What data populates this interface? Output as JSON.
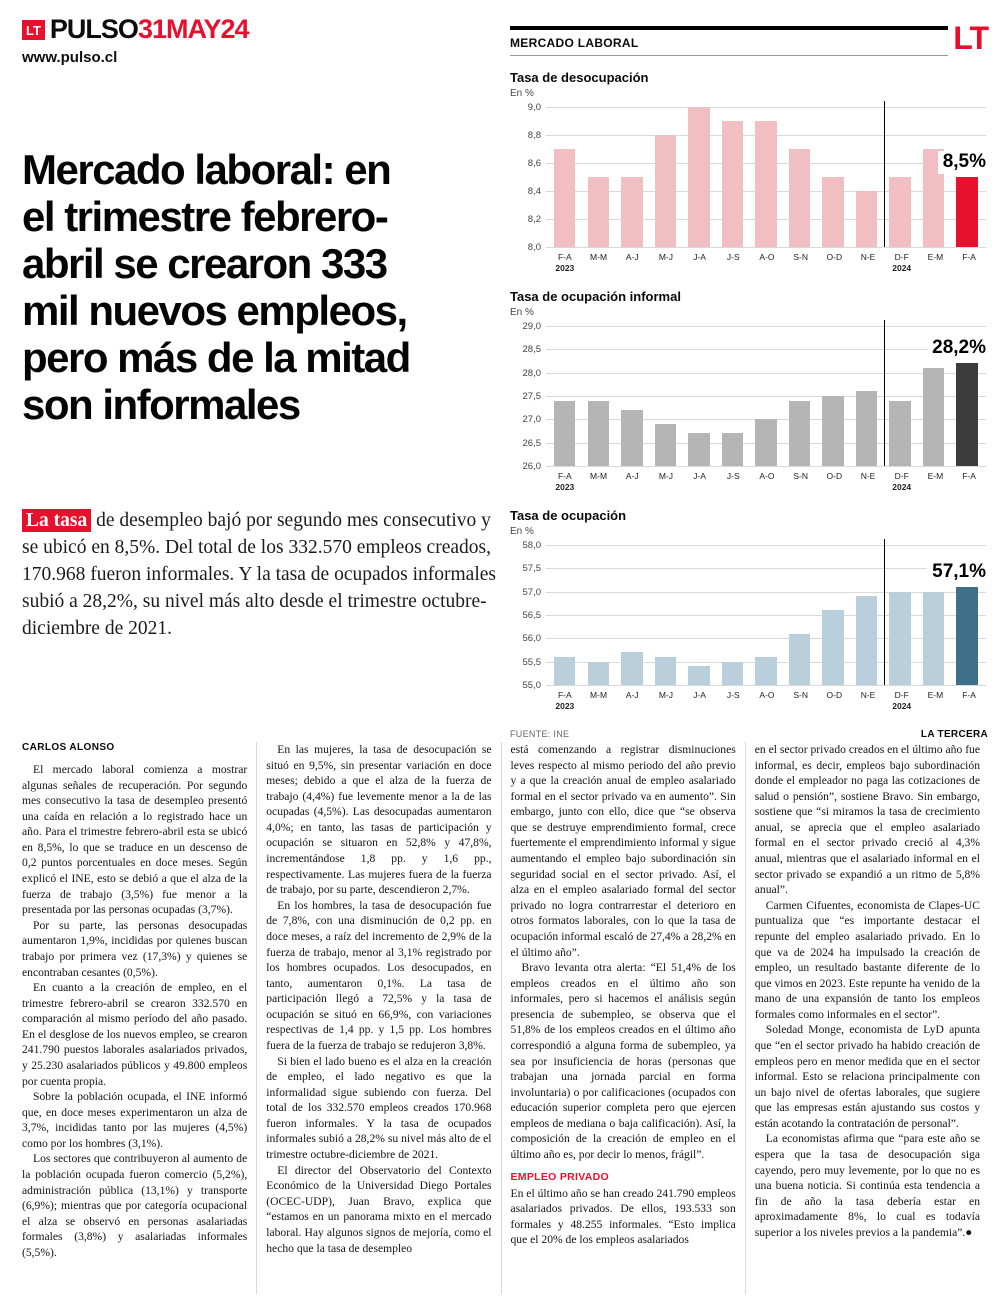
{
  "masthead": {
    "logo": "LT",
    "brand": "PULSO",
    "date": "31MAY24",
    "url": "www.pulso.cl"
  },
  "section_header": {
    "kicker": "MERCADO LABORAL",
    "logo": "LT"
  },
  "headline": "Mercado laboral: en\nel trimestre febrero-\nabril se crearon 333\nmil nuevos empleos,\npero más de la mitad\nson informales",
  "lede_highlight": "La tasa",
  "lede_rest": " de desempleo bajó por segundo mes consecutivo y se ubicó en 8,5%. Del total de los 332.570 empleos creados, 170.968 fueron informales. Y la tasa de ocupados informales subió a 28,2%, su nivel más alto desde el trimestre octubre-diciembre de 2021.",
  "footer": {
    "source": "FUENTE: INE",
    "credit": "LA TERCERA"
  },
  "chart_data": [
    {
      "type": "bar",
      "title": "Tasa de desocupación",
      "unit_label": "En %",
      "categories": [
        "F-A",
        "M-M",
        "A-J",
        "M-J",
        "J-A",
        "J-S",
        "A-O",
        "S-N",
        "O-D",
        "N-E",
        "D-F",
        "E-M",
        "F-A"
      ],
      "year_labels": {
        "0": "2023",
        "10": "2024"
      },
      "values": [
        8.7,
        8.5,
        8.5,
        8.8,
        9.0,
        8.9,
        8.9,
        8.7,
        8.5,
        8.4,
        8.5,
        8.7,
        8.5
      ],
      "ylim": [
        8.0,
        9.0
      ],
      "tick_step": 0.2,
      "value_label": "8,5%",
      "bar_color": "#f1bec2",
      "highlight_color": "#e8112d",
      "year_divider_index": 10
    },
    {
      "type": "bar",
      "title": "Tasa de ocupación informal",
      "unit_label": "En %",
      "categories": [
        "F-A",
        "M-M",
        "A-J",
        "M-J",
        "J-A",
        "J-S",
        "A-O",
        "S-N",
        "O-D",
        "N-E",
        "D-F",
        "E-M",
        "F-A"
      ],
      "year_labels": {
        "0": "2023",
        "10": "2024"
      },
      "values": [
        27.4,
        27.4,
        27.2,
        26.9,
        26.7,
        26.7,
        27.0,
        27.4,
        27.5,
        27.6,
        27.4,
        28.1,
        28.2
      ],
      "ylim": [
        26.0,
        29.0
      ],
      "tick_step": 0.5,
      "value_label": "28,2%",
      "bar_color": "#b5b5b5",
      "highlight_color": "#3c3c3c",
      "year_divider_index": 10
    },
    {
      "type": "bar",
      "title": "Tasa de ocupación",
      "unit_label": "En %",
      "categories": [
        "F-A",
        "M-M",
        "A-J",
        "M-J",
        "J-A",
        "J-S",
        "A-O",
        "S-N",
        "O-D",
        "N-E",
        "D-F",
        "E-M",
        "F-A"
      ],
      "year_labels": {
        "0": "2023",
        "10": "2024"
      },
      "values": [
        55.6,
        55.5,
        55.7,
        55.6,
        55.4,
        55.5,
        55.6,
        56.1,
        56.6,
        56.9,
        57.0,
        57.0,
        57.1
      ],
      "ylim": [
        55.0,
        58.0
      ],
      "tick_step": 0.5,
      "value_label": "57,1%",
      "bar_color": "#b9d0dc",
      "highlight_color": "#3f7089",
      "year_divider_index": 10
    }
  ],
  "columns": [
    {
      "blocks": [
        {
          "t": "byline",
          "text": "CARLOS ALONSO"
        },
        {
          "t": "p",
          "text": "El mercado laboral comienza a mostrar algunas señales de recuperación. Por segundo mes consecutivo la tasa de desempleo presentó una caída en relación a lo registrado hace un año. Para el trimestre febrero-abril esta se ubicó en 8,5%, lo que se traduce en un descenso de 0,2 puntos porcentuales en doce meses. Según explicó el INE, esto se debió a que el alza de la fuerza de trabajo (3,5%) fue menor a la presentada por las personas ocupadas (3,7%)."
        },
        {
          "t": "p",
          "text": "Por su parte, las personas desocupadas aumentaron 1,9%, incididas por quienes buscan trabajo por primera vez (17,3%) y quienes se encontraban cesantes (0,5%)."
        },
        {
          "t": "p",
          "text": "En cuanto a la creación de empleo, en el trimestre febrero-abril se crearon 332.570 en comparación al mismo período del año pasado. En el desglose de los nuevos empleo, se crearon 241.790 puestos laborales asalariados privados, y 25.230 asalariados públicos y 49.800 empleos por cuenta propia."
        },
        {
          "t": "p",
          "text": "Sobre la población ocupada, el INE informó que, en doce meses experimentaron un alza de 3,7%, incididas tanto por las mujeres (4,5%) como por los hombres (3,1%)."
        },
        {
          "t": "p",
          "text": "Los sectores que contribuyeron al aumento de la población ocupada fueron comercio (5,2%), administración pública (13,1%) y transporte (6,9%); mientras que por categoría ocupacional el alza se observó en personas asalariadas formales (3,8%) y asalariadas informales (5,5%)."
        }
      ]
    },
    {
      "blocks": [
        {
          "t": "p",
          "text": "En las mujeres, la tasa de desocupación se situó en 9,5%, sin presentar variación en doce meses; debido a que el alza de la fuerza de trabajo (4,4%) fue levemente menor a la de las ocupadas (4,5%). Las desocupadas aumentaron 4,0%; en tanto, las tasas de participación y ocupación se situaron en 52,8% y 47,8%, incrementándose 1,8 pp. y 1,6 pp., respectivamente. Las mujeres fuera de la fuerza de trabajo, por su parte, descendieron 2,7%."
        },
        {
          "t": "p",
          "text": "En los hombres, la tasa de desocupación fue de 7,8%, con una disminución de 0,2 pp. en doce meses, a raíz del incremento de 2,9% de la fuerza de trabajo, menor al 3,1% registrado por los hombres ocupados. Los desocupados, en tanto, aumentaron 0,1%. La tasa de participación llegó a 72,5% y la tasa de ocupación se situó en 66,9%, con variaciones respectivas de 1,4 pp. y 1,5 pp. Los hombres fuera de la fuerza de trabajo se redujeron 3,8%."
        },
        {
          "t": "p",
          "text": "Si bien el lado bueno es el alza en la creación de empleo, el lado negativo es que la informalidad sigue subiendo con fuerza. Del total de los 332.570 empleos creados 170.968 fueron informales. Y la tasa de ocupados informales subió a 28,2% su nivel más alto de el trimestre octubre-diciembre de 2021."
        },
        {
          "t": "p",
          "text": "El director del Observatorio del Contexto Económico de la Universidad Diego Portales (OCEC-UDP), Juan Bravo, explica que “estamos en un panorama mixto en el mercado laboral. Hay algunos signos de mejoría, como el hecho que la tasa de desempleo"
        }
      ]
    },
    {
      "blocks": [
        {
          "t": "p",
          "indent": false,
          "text": "está comenzando a registrar disminuciones leves respecto al mismo periodo del año previo y a que la creación anual de empleo asalariado formal en el sector privado va en aumento”. Sin embargo, junto con ello, dice que “se observa que se destruye emprendimiento formal, crece fuertemente el emprendimiento informal y sigue aumentando el empleo bajo subordinación sin seguridad social en el sector privado. Así, el alza en el empleo asalariado formal del sector privado no logra contrarrestar el deterioro en otros formatos laborales, con lo que la tasa de ocupación informal escaló de 27,4% a 28,2% en el último año”."
        },
        {
          "t": "p",
          "text": "Bravo levanta otra alerta: “El 51,4% de los empleos creados en el último año son informales, pero si hacemos el análisis según presencia de subempleo, se observa que el 51,8% de los empleos creados en el último año correspondió a alguna forma de subempleo, ya sea por insuficiencia de horas (personas que trabajan una jornada parcial en forma involuntaria) o por calificaciones (ocupados con educación superior completa pero que ejercen empleos de mediana o baja calificación). Así, la composición de la creación de empleo en el último año es, por decir lo menos, frágil”."
        },
        {
          "t": "h",
          "text": "EMPLEO PRIVADO"
        },
        {
          "t": "p",
          "indent": false,
          "text": "En el último año se han creado 241.790 empleos asalariados privados. De ellos, 193.533 son formales y 48.255 informales. “Esto implica que el 20% de los empleos asalariados"
        }
      ]
    },
    {
      "blocks": [
        {
          "t": "p",
          "indent": false,
          "text": "en el sector privado creados en el último año fue informal, es decir, empleos bajo subordinación donde el empleador no paga las cotizaciones de salud o pensión”, sostiene Bravo. Sin embargo, sostiene que “si miramos la tasa de crecimiento anual, se aprecia que el empleo asalariado formal en el sector privado creció al 4,3% anual, mientras que el asalariado informal en el sector privado se expandió a un ritmo de 5,8% anual”."
        },
        {
          "t": "p",
          "text": "Carmen Cifuentes, economista de Clapes-UC puntualiza que “es importante destacar el repunte del empleo asalariado privado. En lo que va de 2024 ha impulsado la creación de empleo, un resultado bastante diferente de lo que vimos en 2023. Este repunte ha venido de la mano de una expansión de tanto los empleos formales como informales en el sector”."
        },
        {
          "t": "p",
          "text": "Soledad Monge, economista de LyD apunta que “en el sector privado ha habido creación de empleos pero en menor medida que en el sector informal. Esto se relaciona principalmente con un bajo nivel de ofertas laborales, que sugiere que las empresas están ajustando sus costos y están acotando la contratación de personal”."
        },
        {
          "t": "p",
          "text": "La economistas afirma que “para este año se espera que la tasa de desocupación siga cayendo, pero muy levemente, por lo que no es una buena noticia. Si continúa esta tendencia a fin de año la tasa debería estar en aproximadamente 8%, lo cual es todavía superior a los niveles previos a la pandemia”.●"
        }
      ]
    }
  ]
}
